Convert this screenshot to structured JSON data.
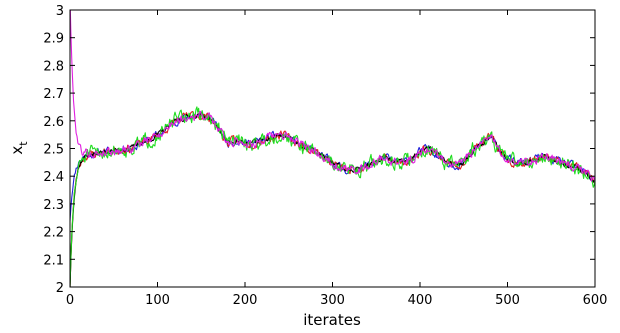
{
  "chart_data": {
    "type": "line",
    "xlabel": "iterates",
    "ylabel": "x",
    "ylabel_subscript": "t",
    "xlim": [
      0,
      600
    ],
    "ylim": [
      2,
      3
    ],
    "xticks": [
      0,
      100,
      200,
      300,
      400,
      500,
      600
    ],
    "yticks": [
      2,
      2.1,
      2.2,
      2.3,
      2.4,
      2.5,
      2.6,
      2.7,
      2.8,
      2.9,
      3
    ],
    "xtick_labels": [
      "0",
      "100",
      "200",
      "300",
      "400",
      "500",
      "600"
    ],
    "ytick_labels": [
      "2",
      "2.1",
      "2.2",
      "2.3",
      "2.4",
      "2.5",
      "2.6",
      "2.7",
      "2.8",
      "2.9",
      "3"
    ],
    "grid": false,
    "legend": "none",
    "trend": {
      "x": [
        0,
        10,
        20,
        30,
        40,
        50,
        60,
        70,
        80,
        90,
        100,
        110,
        120,
        130,
        140,
        150,
        160,
        170,
        180,
        190,
        200,
        210,
        220,
        230,
        240,
        250,
        260,
        270,
        280,
        290,
        300,
        310,
        320,
        330,
        340,
        350,
        360,
        370,
        380,
        390,
        400,
        410,
        420,
        430,
        440,
        450,
        460,
        470,
        480,
        490,
        500,
        510,
        520,
        530,
        540,
        550,
        560,
        570,
        580,
        590,
        600
      ],
      "y": [
        2.46,
        2.47,
        2.48,
        2.48,
        2.49,
        2.49,
        2.5,
        2.5,
        2.52,
        2.53,
        2.55,
        2.57,
        2.6,
        2.61,
        2.62,
        2.62,
        2.61,
        2.57,
        2.52,
        2.53,
        2.52,
        2.52,
        2.53,
        2.54,
        2.55,
        2.54,
        2.52,
        2.5,
        2.49,
        2.47,
        2.45,
        2.43,
        2.42,
        2.43,
        2.44,
        2.45,
        2.47,
        2.45,
        2.45,
        2.46,
        2.49,
        2.5,
        2.48,
        2.45,
        2.44,
        2.45,
        2.49,
        2.52,
        2.54,
        2.5,
        2.46,
        2.45,
        2.45,
        2.46,
        2.47,
        2.46,
        2.45,
        2.44,
        2.43,
        2.41,
        2.38
      ]
    },
    "series": [
      {
        "color": "#1f1fd8",
        "start": 2.24,
        "noise": 0.012,
        "seed": 11
      },
      {
        "color": "#e01f1f",
        "start": 2.0,
        "noise": 0.013,
        "seed": 23
      },
      {
        "color": "#000000",
        "start": 2.0,
        "noise": 0.008,
        "seed": 37
      },
      {
        "color": "#1fdc1f",
        "start": 2.0,
        "noise": 0.022,
        "seed": 51
      },
      {
        "color": "#e01fe0",
        "start": 3.05,
        "noise": 0.014,
        "seed": 79
      }
    ]
  }
}
